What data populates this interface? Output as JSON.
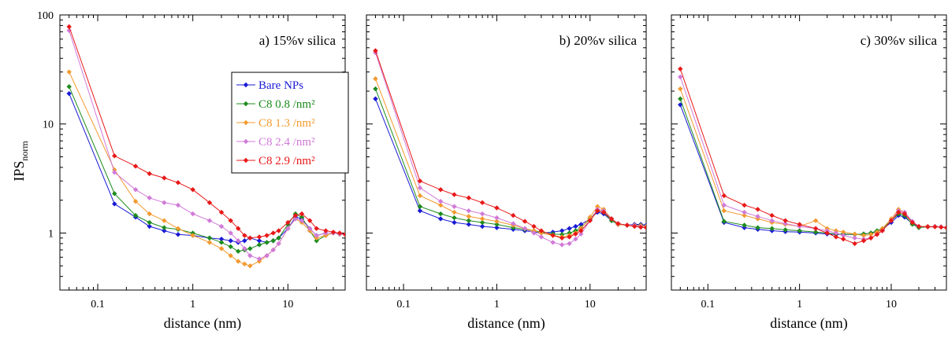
{
  "ylabel": "IPS",
  "ylabel_sub": "norm",
  "chart_data": [
    {
      "type": "line",
      "title": "a) 15%v silica",
      "xlabel": "distance (nm)",
      "xscale": "log",
      "yscale": "log",
      "xlim": [
        0.04,
        40
      ],
      "ylim": [
        0.3,
        100
      ],
      "xticks": [
        {
          "v": 0.1,
          "label": "0.1"
        },
        {
          "v": 1,
          "label": "1"
        },
        {
          "v": 10,
          "label": "10"
        }
      ],
      "yticks": [
        {
          "v": 1,
          "label": "1"
        },
        {
          "v": 10,
          "label": "10"
        },
        {
          "v": 100,
          "label": "100"
        }
      ],
      "legend_position": "upper-right",
      "series": [
        {
          "name": "Bare NPs",
          "color": "#1a1ad6",
          "x": [
            0.05,
            0.15,
            0.25,
            0.35,
            0.5,
            0.7,
            1,
            1.5,
            2,
            2.5,
            3,
            3.5,
            4,
            5,
            6,
            7,
            8,
            10,
            12,
            14,
            17,
            20,
            25,
            30,
            35,
            40
          ],
          "y": [
            19,
            1.85,
            1.4,
            1.15,
            1.05,
            0.97,
            0.95,
            0.9,
            0.88,
            0.85,
            0.82,
            0.85,
            0.9,
            0.85,
            0.82,
            0.85,
            0.9,
            1.1,
            1.4,
            1.35,
            1.1,
            0.95,
            1.0,
            1.0,
            0.98,
            0.97
          ]
        },
        {
          "name": "C8 0.8 /nm²",
          "color": "#1d8c1d",
          "x": [
            0.05,
            0.15,
            0.25,
            0.35,
            0.5,
            0.7,
            1,
            1.5,
            2,
            2.5,
            3,
            3.5,
            4,
            5,
            6,
            7,
            8,
            10,
            12,
            14,
            17,
            20,
            25,
            30,
            35,
            40
          ],
          "y": [
            22,
            2.3,
            1.45,
            1.25,
            1.12,
            1.08,
            1.0,
            0.9,
            0.82,
            0.75,
            0.68,
            0.7,
            0.72,
            0.78,
            0.82,
            0.85,
            0.9,
            1.2,
            1.5,
            1.4,
            1.05,
            0.85,
            0.95,
            1.0,
            0.98,
            0.97
          ]
        },
        {
          "name": "C8 1.3 /nm²",
          "color": "#f39a2f",
          "x": [
            0.05,
            0.15,
            0.25,
            0.35,
            0.5,
            0.7,
            1,
            1.5,
            2,
            2.5,
            3,
            3.5,
            4,
            5,
            6,
            7,
            8,
            10,
            12,
            14,
            17,
            20,
            25,
            30,
            35,
            40
          ],
          "y": [
            30,
            3.8,
            1.95,
            1.5,
            1.3,
            1.1,
            0.95,
            0.82,
            0.72,
            0.62,
            0.55,
            0.52,
            0.5,
            0.55,
            0.62,
            0.7,
            0.8,
            1.1,
            1.35,
            1.25,
            1.05,
            0.9,
            0.95,
            1.0,
            0.98,
            0.97
          ]
        },
        {
          "name": "C8 2.4 /nm²",
          "color": "#d17ad8",
          "x": [
            0.05,
            0.15,
            0.25,
            0.35,
            0.5,
            0.7,
            1,
            1.5,
            2,
            2.5,
            3,
            3.5,
            4,
            5,
            6,
            7,
            8,
            10,
            12,
            14,
            17,
            20,
            25,
            30,
            35,
            40
          ],
          "y": [
            72,
            3.6,
            2.5,
            2.1,
            1.9,
            1.8,
            1.5,
            1.3,
            1.15,
            1.0,
            0.85,
            0.72,
            0.62,
            0.58,
            0.62,
            0.7,
            0.8,
            1.1,
            1.35,
            1.3,
            1.1,
            0.95,
            1.0,
            1.0,
            0.98,
            0.97
          ]
        },
        {
          "name": "C8 2.9 /nm²",
          "color": "#e81818",
          "x": [
            0.05,
            0.15,
            0.25,
            0.35,
            0.5,
            0.7,
            1,
            1.5,
            2,
            2.5,
            3,
            3.5,
            4,
            5,
            6,
            7,
            8,
            10,
            12,
            14,
            17,
            20,
            25,
            30,
            35,
            40
          ],
          "y": [
            78,
            5.1,
            4.1,
            3.5,
            3.2,
            2.9,
            2.5,
            1.9,
            1.55,
            1.3,
            1.1,
            0.95,
            0.9,
            0.92,
            0.95,
            1.0,
            1.05,
            1.25,
            1.45,
            1.5,
            1.3,
            1.1,
            1.05,
            1.02,
            1.0,
            0.97
          ]
        }
      ]
    },
    {
      "type": "line",
      "title": "b) 20%v silica",
      "xlabel": "distance (nm)",
      "xscale": "log",
      "yscale": "log",
      "xlim": [
        0.04,
        40
      ],
      "ylim": [
        0.3,
        100
      ],
      "xticks": [
        {
          "v": 0.1,
          "label": "0.1"
        },
        {
          "v": 1,
          "label": "1"
        },
        {
          "v": 10,
          "label": "10"
        }
      ],
      "yticks": [],
      "series": [
        {
          "color": "#1a1ad6",
          "x": [
            0.05,
            0.15,
            0.25,
            0.35,
            0.5,
            0.7,
            1,
            1.5,
            2,
            2.5,
            3,
            4,
            5,
            6,
            7,
            8,
            10,
            12,
            14,
            17,
            20,
            25,
            30,
            35,
            40
          ],
          "y": [
            17,
            1.6,
            1.35,
            1.25,
            1.2,
            1.15,
            1.12,
            1.08,
            1.05,
            1.02,
            1.0,
            1.02,
            1.05,
            1.1,
            1.15,
            1.2,
            1.35,
            1.55,
            1.5,
            1.3,
            1.2,
            1.18,
            1.2,
            1.2,
            1.18
          ]
        },
        {
          "color": "#1d8c1d",
          "x": [
            0.05,
            0.15,
            0.25,
            0.35,
            0.5,
            0.7,
            1,
            1.5,
            2,
            2.5,
            3,
            4,
            5,
            6,
            7,
            8,
            10,
            12,
            14,
            17,
            20,
            25,
            30,
            35,
            40
          ],
          "y": [
            21,
            1.75,
            1.5,
            1.38,
            1.3,
            1.25,
            1.2,
            1.12,
            1.08,
            1.05,
            1.02,
            0.98,
            0.97,
            1.0,
            1.05,
            1.12,
            1.35,
            1.6,
            1.55,
            1.3,
            1.2,
            1.18,
            1.18,
            1.18,
            1.15
          ]
        },
        {
          "color": "#f39a2f",
          "x": [
            0.05,
            0.15,
            0.25,
            0.35,
            0.5,
            0.7,
            1,
            1.5,
            2,
            2.5,
            3,
            4,
            5,
            6,
            7,
            8,
            10,
            12,
            14,
            17,
            20,
            25,
            30,
            35,
            40
          ],
          "y": [
            26,
            2.2,
            1.8,
            1.55,
            1.42,
            1.35,
            1.28,
            1.18,
            1.1,
            1.05,
            1.0,
            0.95,
            0.92,
            0.95,
            1.0,
            1.1,
            1.4,
            1.75,
            1.65,
            1.35,
            1.2,
            1.18,
            1.18,
            1.17,
            1.15
          ]
        },
        {
          "color": "#d17ad8",
          "x": [
            0.05,
            0.15,
            0.25,
            0.35,
            0.5,
            0.7,
            1,
            1.5,
            2,
            2.5,
            3,
            4,
            5,
            6,
            7,
            8,
            10,
            12,
            14,
            17,
            20,
            25,
            30,
            35,
            40
          ],
          "y": [
            45,
            2.6,
            1.95,
            1.75,
            1.6,
            1.5,
            1.38,
            1.22,
            1.1,
            1.0,
            0.92,
            0.82,
            0.78,
            0.8,
            0.88,
            0.98,
            1.3,
            1.65,
            1.6,
            1.35,
            1.22,
            1.18,
            1.17,
            1.15,
            1.12
          ]
        },
        {
          "color": "#e81818",
          "x": [
            0.05,
            0.15,
            0.25,
            0.35,
            0.5,
            0.7,
            1,
            1.5,
            2,
            2.5,
            3,
            4,
            5,
            6,
            7,
            8,
            10,
            12,
            14,
            17,
            20,
            25,
            30,
            35,
            40
          ],
          "y": [
            47,
            3.0,
            2.5,
            2.25,
            2.1,
            1.9,
            1.7,
            1.45,
            1.28,
            1.15,
            1.05,
            0.95,
            0.9,
            0.92,
            0.98,
            1.05,
            1.3,
            1.6,
            1.55,
            1.35,
            1.22,
            1.18,
            1.15,
            1.13,
            1.12
          ]
        }
      ]
    },
    {
      "type": "line",
      "title": "c) 30%v silica",
      "xlabel": "distance (nm)",
      "xscale": "log",
      "yscale": "log",
      "xlim": [
        0.04,
        40
      ],
      "ylim": [
        0.3,
        100
      ],
      "xticks": [
        {
          "v": 0.1,
          "label": "0.1"
        },
        {
          "v": 1,
          "label": "1"
        },
        {
          "v": 10,
          "label": "10"
        }
      ],
      "yticks": [],
      "series": [
        {
          "color": "#1a1ad6",
          "x": [
            0.05,
            0.15,
            0.25,
            0.35,
            0.5,
            0.7,
            1,
            1.5,
            2,
            2.5,
            3,
            4,
            5,
            6,
            7,
            8,
            10,
            12,
            14,
            17,
            20,
            25,
            30,
            35,
            40
          ],
          "y": [
            15,
            1.25,
            1.12,
            1.08,
            1.05,
            1.03,
            1.02,
            1.0,
            0.98,
            0.97,
            0.97,
            0.97,
            0.98,
            1.0,
            1.03,
            1.08,
            1.25,
            1.45,
            1.4,
            1.22,
            1.15,
            1.15,
            1.15,
            1.14,
            1.12
          ]
        },
        {
          "color": "#1d8c1d",
          "x": [
            0.05,
            0.15,
            0.25,
            0.35,
            0.5,
            0.7,
            1,
            1.5,
            2,
            2.5,
            3,
            4,
            5,
            6,
            7,
            8,
            10,
            12,
            14,
            17,
            20,
            25,
            30,
            35,
            40
          ],
          "y": [
            17,
            1.28,
            1.18,
            1.12,
            1.1,
            1.07,
            1.05,
            1.02,
            1.0,
            0.98,
            0.98,
            0.97,
            0.98,
            1.0,
            1.05,
            1.1,
            1.3,
            1.5,
            1.45,
            1.2,
            1.12,
            1.14,
            1.15,
            1.14,
            1.12
          ]
        },
        {
          "color": "#f39a2f",
          "x": [
            0.05,
            0.15,
            0.25,
            0.35,
            0.5,
            0.7,
            1,
            1.5,
            2,
            2.5,
            3,
            4,
            5,
            6,
            7,
            8,
            10,
            12,
            14,
            17,
            20,
            25,
            30,
            35,
            40
          ],
          "y": [
            21,
            1.6,
            1.45,
            1.35,
            1.25,
            1.2,
            1.15,
            1.3,
            1.1,
            1.05,
            1.02,
            0.98,
            0.95,
            0.97,
            1.02,
            1.1,
            1.35,
            1.65,
            1.55,
            1.25,
            1.15,
            1.15,
            1.15,
            1.14,
            1.12
          ]
        },
        {
          "color": "#d17ad8",
          "x": [
            0.05,
            0.15,
            0.25,
            0.35,
            0.5,
            0.7,
            1,
            1.5,
            2,
            2.5,
            3,
            4,
            5,
            6,
            7,
            8,
            10,
            12,
            14,
            17,
            20,
            25,
            30,
            35,
            40
          ],
          "y": [
            27,
            1.8,
            1.55,
            1.42,
            1.3,
            1.22,
            1.15,
            1.1,
            1.05,
            1.0,
            0.95,
            0.9,
            0.88,
            0.9,
            0.97,
            1.05,
            1.3,
            1.6,
            1.55,
            1.28,
            1.15,
            1.14,
            1.15,
            1.14,
            1.12
          ]
        },
        {
          "color": "#e81818",
          "x": [
            0.05,
            0.15,
            0.25,
            0.35,
            0.5,
            0.7,
            1,
            1.5,
            2,
            2.5,
            3,
            4,
            5,
            6,
            7,
            8,
            10,
            12,
            14,
            17,
            20,
            25,
            30,
            35,
            40
          ],
          "y": [
            32,
            2.2,
            1.8,
            1.65,
            1.45,
            1.3,
            1.2,
            1.1,
            1.0,
            0.92,
            0.88,
            0.8,
            0.85,
            0.9,
            0.97,
            1.05,
            1.3,
            1.55,
            1.5,
            1.25,
            1.15,
            1.14,
            1.14,
            1.13,
            1.12
          ]
        }
      ]
    }
  ]
}
